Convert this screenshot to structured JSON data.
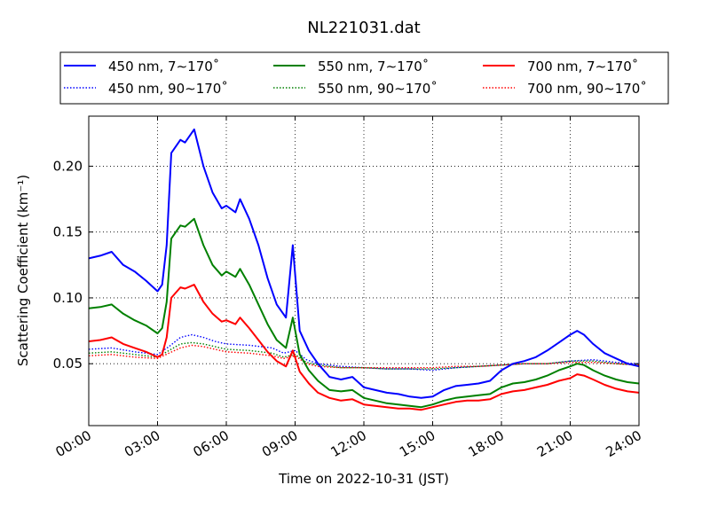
{
  "chart_data": {
    "type": "line",
    "title": "NL221031.dat",
    "xlabel": "Time on 2022-10-31 (JST)",
    "ylabel": "Scattering Coefficient (km⁻¹)",
    "x_unit": "hours",
    "xlim": [
      0,
      24
    ],
    "ylim": [
      0.003,
      0.238
    ],
    "xticks": [
      0,
      3,
      6,
      9,
      12,
      15,
      18,
      21,
      24
    ],
    "xtick_labels": [
      "00:00",
      "03:00",
      "06:00",
      "09:00",
      "12:00",
      "15:00",
      "18:00",
      "21:00",
      "24:00"
    ],
    "yticks": [
      0.05,
      0.1,
      0.15,
      0.2
    ],
    "ytick_labels": [
      "0.05",
      "0.10",
      "0.15",
      "0.20"
    ],
    "grid": true,
    "legend_position": "top",
    "series": [
      {
        "name": "450 nm, 7∼170˚",
        "color": "#0000ff",
        "style": "solid",
        "x": [
          0,
          0.5,
          1,
          1.5,
          2,
          2.5,
          3,
          3.2,
          3.4,
          3.6,
          4,
          4.2,
          4.6,
          5,
          5.4,
          5.8,
          6,
          6.4,
          6.6,
          7,
          7.4,
          7.8,
          8.2,
          8.6,
          8.9,
          9.2,
          9.6,
          10,
          10.5,
          11,
          11.5,
          12,
          12.5,
          13,
          13.5,
          14,
          14.5,
          15,
          15.5,
          16,
          16.5,
          17,
          17.5,
          18,
          18.5,
          19,
          19.5,
          20,
          20.5,
          21,
          21.3,
          21.6,
          22,
          22.5,
          23,
          23.5,
          24
        ],
        "values": [
          0.13,
          0.132,
          0.135,
          0.125,
          0.12,
          0.113,
          0.105,
          0.11,
          0.14,
          0.21,
          0.22,
          0.218,
          0.228,
          0.2,
          0.18,
          0.168,
          0.17,
          0.165,
          0.175,
          0.16,
          0.14,
          0.115,
          0.095,
          0.085,
          0.14,
          0.075,
          0.06,
          0.05,
          0.04,
          0.038,
          0.04,
          0.032,
          0.03,
          0.028,
          0.027,
          0.025,
          0.024,
          0.025,
          0.03,
          0.033,
          0.034,
          0.035,
          0.037,
          0.045,
          0.05,
          0.052,
          0.055,
          0.06,
          0.066,
          0.072,
          0.075,
          0.072,
          0.065,
          0.058,
          0.054,
          0.05,
          0.048
        ]
      },
      {
        "name": "550 nm, 7∼170˚",
        "color": "#008000",
        "style": "solid",
        "x": [
          0,
          0.5,
          1,
          1.5,
          2,
          2.5,
          3,
          3.2,
          3.4,
          3.6,
          4,
          4.2,
          4.6,
          5,
          5.4,
          5.8,
          6,
          6.4,
          6.6,
          7,
          7.4,
          7.8,
          8.2,
          8.6,
          8.9,
          9.2,
          9.6,
          10,
          10.5,
          11,
          11.5,
          12,
          12.5,
          13,
          13.5,
          14,
          14.5,
          15,
          15.5,
          16,
          16.5,
          17,
          17.5,
          18,
          18.5,
          19,
          19.5,
          20,
          20.5,
          21,
          21.3,
          21.6,
          22,
          22.5,
          23,
          23.5,
          24
        ],
        "values": [
          0.092,
          0.093,
          0.095,
          0.088,
          0.083,
          0.079,
          0.073,
          0.077,
          0.097,
          0.145,
          0.155,
          0.154,
          0.16,
          0.14,
          0.125,
          0.117,
          0.12,
          0.116,
          0.122,
          0.11,
          0.095,
          0.08,
          0.068,
          0.062,
          0.085,
          0.057,
          0.045,
          0.037,
          0.03,
          0.029,
          0.03,
          0.024,
          0.022,
          0.02,
          0.019,
          0.018,
          0.017,
          0.019,
          0.022,
          0.024,
          0.025,
          0.026,
          0.027,
          0.032,
          0.035,
          0.036,
          0.038,
          0.041,
          0.045,
          0.048,
          0.05,
          0.049,
          0.045,
          0.041,
          0.038,
          0.036,
          0.035
        ]
      },
      {
        "name": "700 nm, 7∼170˚",
        "color": "#ff0000",
        "style": "solid",
        "x": [
          0,
          0.5,
          1,
          1.5,
          2,
          2.5,
          3,
          3.2,
          3.4,
          3.6,
          4,
          4.2,
          4.6,
          5,
          5.4,
          5.8,
          6,
          6.4,
          6.6,
          7,
          7.4,
          7.8,
          8.2,
          8.6,
          8.9,
          9.2,
          9.6,
          10,
          10.5,
          11,
          11.5,
          12,
          12.5,
          13,
          13.5,
          14,
          14.5,
          15,
          15.5,
          16,
          16.5,
          17,
          17.5,
          18,
          18.5,
          19,
          19.5,
          20,
          20.5,
          21,
          21.3,
          21.6,
          22,
          22.5,
          23,
          23.5,
          24
        ],
        "values": [
          0.067,
          0.068,
          0.07,
          0.065,
          0.062,
          0.059,
          0.055,
          0.057,
          0.07,
          0.1,
          0.108,
          0.107,
          0.11,
          0.097,
          0.088,
          0.082,
          0.083,
          0.08,
          0.085,
          0.077,
          0.068,
          0.059,
          0.052,
          0.048,
          0.06,
          0.044,
          0.035,
          0.028,
          0.024,
          0.022,
          0.023,
          0.019,
          0.018,
          0.017,
          0.016,
          0.016,
          0.015,
          0.017,
          0.019,
          0.021,
          0.022,
          0.022,
          0.023,
          0.027,
          0.029,
          0.03,
          0.032,
          0.034,
          0.037,
          0.039,
          0.042,
          0.041,
          0.038,
          0.034,
          0.031,
          0.029,
          0.028
        ]
      },
      {
        "name": "450 nm, 90∼170˚",
        "color": "#0000ff",
        "style": "dotted",
        "x": [
          0,
          1,
          2,
          3,
          3.5,
          4,
          4.5,
          5,
          5.5,
          6,
          7,
          8,
          8.5,
          9,
          9.5,
          10,
          11,
          12,
          13,
          14,
          15,
          16,
          17,
          18,
          19,
          20,
          21,
          22,
          23,
          24
        ],
        "values": [
          0.061,
          0.062,
          0.059,
          0.057,
          0.063,
          0.07,
          0.072,
          0.07,
          0.067,
          0.065,
          0.064,
          0.062,
          0.058,
          0.06,
          0.053,
          0.05,
          0.048,
          0.047,
          0.046,
          0.046,
          0.045,
          0.047,
          0.048,
          0.049,
          0.05,
          0.05,
          0.052,
          0.053,
          0.051,
          0.05
        ]
      },
      {
        "name": "550 nm, 90∼170˚",
        "color": "#008000",
        "style": "dotted",
        "x": [
          0,
          1,
          2,
          3,
          3.5,
          4,
          4.5,
          5,
          5.5,
          6,
          7,
          8,
          8.5,
          9,
          9.5,
          10,
          11,
          12,
          13,
          14,
          15,
          16,
          17,
          18,
          19,
          20,
          21,
          22,
          23,
          24
        ],
        "values": [
          0.058,
          0.059,
          0.057,
          0.055,
          0.06,
          0.065,
          0.066,
          0.065,
          0.063,
          0.061,
          0.06,
          0.058,
          0.055,
          0.057,
          0.051,
          0.049,
          0.047,
          0.047,
          0.046,
          0.046,
          0.046,
          0.047,
          0.048,
          0.049,
          0.05,
          0.05,
          0.052,
          0.052,
          0.05,
          0.049
        ]
      },
      {
        "name": "700 nm, 90∼170˚",
        "color": "#ff0000",
        "style": "dotted",
        "x": [
          0,
          1,
          2,
          3,
          3.5,
          4,
          4.5,
          5,
          5.5,
          6,
          7,
          8,
          8.5,
          9,
          9.5,
          10,
          11,
          12,
          13,
          14,
          15,
          16,
          17,
          18,
          19,
          20,
          21,
          22,
          23,
          24
        ],
        "values": [
          0.056,
          0.057,
          0.055,
          0.054,
          0.058,
          0.062,
          0.064,
          0.063,
          0.061,
          0.059,
          0.058,
          0.056,
          0.054,
          0.056,
          0.05,
          0.048,
          0.047,
          0.047,
          0.047,
          0.047,
          0.047,
          0.048,
          0.048,
          0.049,
          0.05,
          0.05,
          0.051,
          0.051,
          0.05,
          0.049
        ]
      }
    ]
  }
}
